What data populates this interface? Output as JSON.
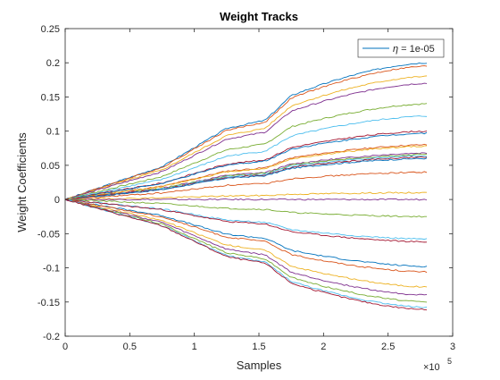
{
  "chart_data": {
    "type": "line",
    "title": "Weight Tracks",
    "xlabel": "Samples",
    "ylabel": "Weight Coefficients",
    "x_exponent_base": "×10",
    "x_exponent_power": "5",
    "xlim": [
      0,
      3
    ],
    "ylim": [
      -0.2,
      0.25
    ],
    "xticks": [
      0,
      0.5,
      1,
      1.5,
      2,
      2.5,
      3
    ],
    "xtick_labels": [
      "0",
      "0.5",
      "1",
      "1.5",
      "2",
      "2.5",
      "3"
    ],
    "yticks": [
      -0.2,
      -0.15,
      -0.1,
      -0.05,
      0,
      0.05,
      0.1,
      0.15,
      0.2,
      0.25
    ],
    "ytick_labels": [
      "-0.2",
      "-0.15",
      "-0.1",
      "-0.05",
      "0",
      "0.05",
      "0.1",
      "0.15",
      "0.2",
      "0.25"
    ],
    "grid": false,
    "legend": {
      "position": "top-right",
      "entries": [
        {
          "symbol": "η",
          "label": " = 1e-05",
          "color": "#0072BD"
        }
      ]
    },
    "x_end": 2.8,
    "series_final_values": [
      0.2,
      0.195,
      0.18,
      0.17,
      0.14,
      0.122,
      0.1,
      0.097,
      0.08,
      0.078,
      0.068,
      0.066,
      0.064,
      0.062,
      0.06,
      0.04,
      0.01,
      0.0,
      -0.025,
      -0.058,
      -0.062,
      -0.098,
      -0.106,
      -0.128,
      -0.14,
      -0.15,
      -0.158,
      -0.161
    ],
    "colors": [
      "#0072BD",
      "#D95319",
      "#EDB120",
      "#7E2F8E",
      "#77AC30",
      "#4DBEEE",
      "#A2142F"
    ]
  }
}
